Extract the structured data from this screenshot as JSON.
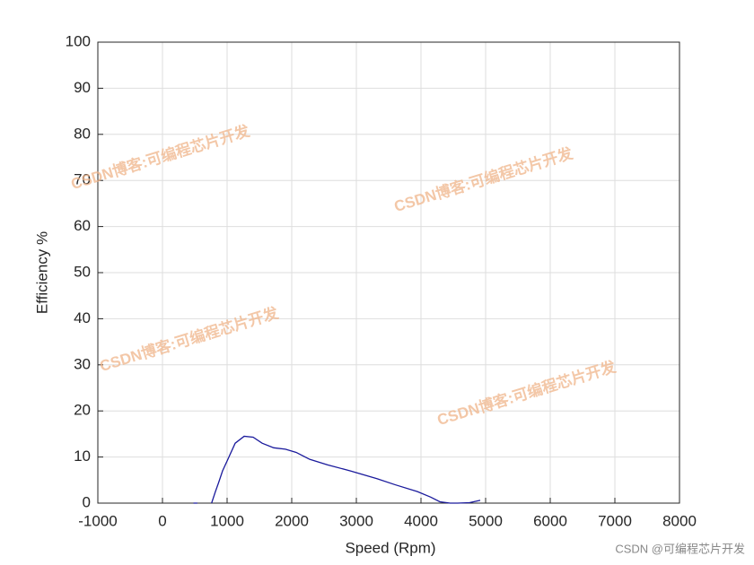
{
  "chart_data": {
    "type": "line",
    "xlabel": "Speed (Rpm)",
    "ylabel": "Efficiency %",
    "x": [
      480,
      540,
      640,
      760,
      819,
      870,
      930,
      1028,
      1125,
      1264,
      1403,
      1542,
      1722,
      1903,
      2069,
      2278,
      2556,
      2903,
      3319,
      3597,
      3944,
      4150,
      4292,
      4450,
      4569,
      4750,
      4917
    ],
    "series": [
      {
        "name": "Efficiency",
        "color": "#1a1a9c",
        "values": [
          0,
          0,
          null,
          0,
          2.5,
          4.5,
          7,
          10,
          13,
          14.5,
          14.3,
          13,
          12,
          11.7,
          11,
          9.5,
          8.3,
          7,
          5.3,
          4,
          2.5,
          1.3,
          0.3,
          0,
          0,
          0.1,
          0.6
        ]
      }
    ],
    "xlim": [
      -1000,
      8000
    ],
    "xticks": [
      -1000,
      0,
      1000,
      2000,
      3000,
      4000,
      5000,
      6000,
      7000,
      8000
    ],
    "ylim": [
      0,
      100
    ],
    "yticks": [
      0,
      10,
      20,
      30,
      40,
      50,
      60,
      70,
      80,
      90,
      100
    ],
    "grid": true,
    "watermarks": [
      "CSDN博客:可编程芯片开发",
      "CSDN博客:可编程芯片开发",
      "CSDN博客:可编程芯片开发",
      "CSDN博客:可编程芯片开发"
    ],
    "footer": "CSDN @可编程芯片开发"
  }
}
